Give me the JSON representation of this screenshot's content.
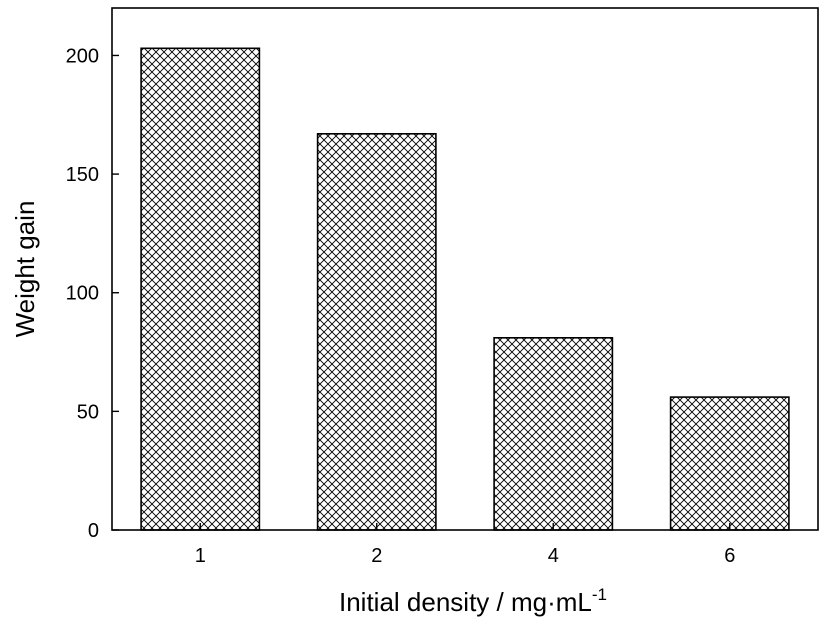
{
  "chart_data": {
    "type": "bar",
    "categories": [
      "1",
      "2",
      "4",
      "6"
    ],
    "values": [
      203,
      167,
      81,
      56
    ],
    "title": "",
    "xlabel": "Initial density / mg·mL",
    "xlabel_superscript": "-1",
    "ylabel": "Weight gain",
    "ylim": [
      0,
      220
    ],
    "yticks": [
      0,
      50,
      100,
      150,
      200
    ],
    "grid": false,
    "legend": "none",
    "fill_pattern": "crosshatch",
    "bar_stroke_color": "#000000",
    "bar_fill_color": "#ffffff"
  }
}
